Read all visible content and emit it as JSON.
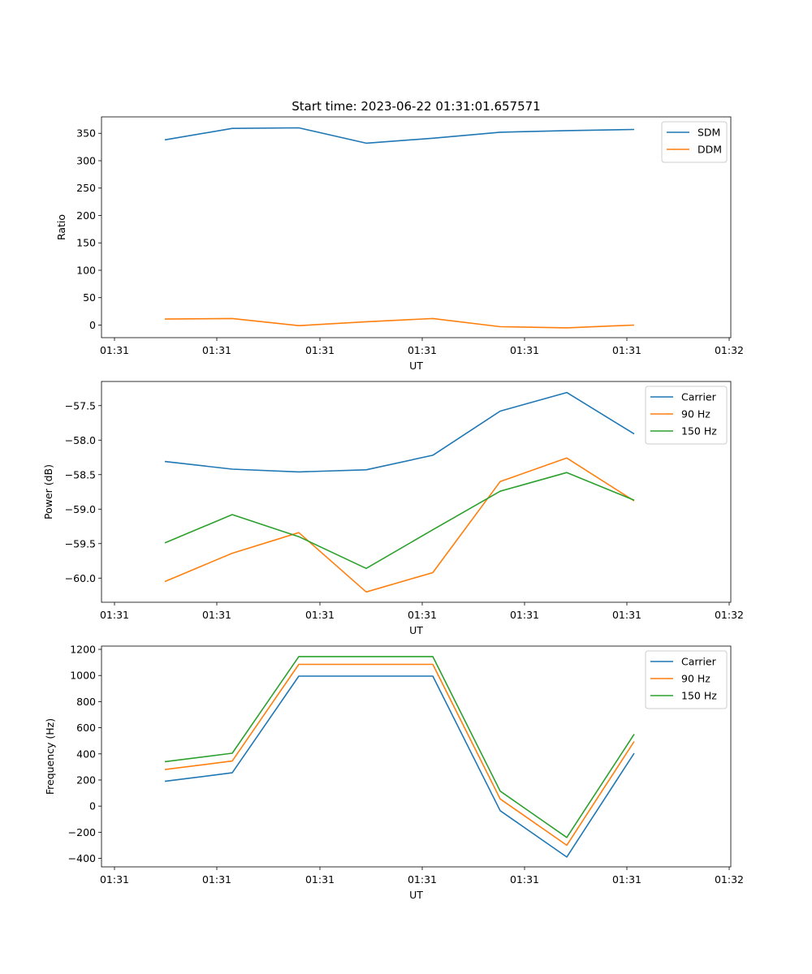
{
  "chart_data": [
    {
      "type": "line",
      "title": "Start time: 2023-06-22 01:31:01.657571",
      "xlabel": "UT",
      "ylabel": "Ratio",
      "ylim": [
        -23,
        380
      ],
      "x_ticks": [
        "01:31",
        "01:31",
        "01:31",
        "01:31",
        "01:31",
        "01:31",
        "01:31",
        "01:32"
      ],
      "y_ticks": [
        0,
        50,
        100,
        150,
        200,
        250,
        300,
        350
      ],
      "legend": "top-right",
      "series": [
        {
          "name": "SDM",
          "color": "#1f77b4",
          "values": [
            338,
            359,
            360,
            332,
            341,
            352,
            355,
            357
          ]
        },
        {
          "name": "DDM",
          "color": "#ff7f0e",
          "values": [
            11,
            12,
            -1,
            6,
            12,
            -3,
            -5,
            0
          ]
        }
      ]
    },
    {
      "type": "line",
      "title": "",
      "xlabel": "UT",
      "ylabel": "Power (dB)",
      "ylim": [
        -60.35,
        -57.15
      ],
      "x_ticks": [
        "01:31",
        "01:31",
        "01:31",
        "01:31",
        "01:31",
        "01:31",
        "01:31",
        "01:32"
      ],
      "y_ticks": [
        "−60.0",
        "−59.5",
        "−59.0",
        "−58.5",
        "−58.0",
        "−57.5"
      ],
      "legend": "top-right",
      "series": [
        {
          "name": "Carrier",
          "color": "#1f77b4",
          "values": [
            -58.31,
            -58.42,
            -58.46,
            -58.43,
            -58.22,
            -57.58,
            -57.31,
            -57.91
          ]
        },
        {
          "name": "90 Hz",
          "color": "#ff7f0e",
          "values": [
            -60.05,
            -59.64,
            -59.34,
            -60.2,
            -59.92,
            -58.6,
            -58.26,
            -58.88
          ]
        },
        {
          "name": "150 Hz",
          "color": "#2ca02c",
          "values": [
            -59.49,
            -59.08,
            -59.4,
            -59.86,
            -59.3,
            -58.74,
            -58.47,
            -58.87
          ]
        }
      ]
    },
    {
      "type": "line",
      "title": "",
      "xlabel": "UT",
      "ylabel": "Frequency (Hz)",
      "ylim": [
        -465,
        1225
      ],
      "x_ticks": [
        "01:31",
        "01:31",
        "01:31",
        "01:31",
        "01:31",
        "01:31",
        "01:31",
        "01:32"
      ],
      "y_ticks": [
        "−400",
        "−200",
        "0",
        "200",
        "400",
        "600",
        "800",
        "1000",
        "1200"
      ],
      "legend": "top-right",
      "series": [
        {
          "name": "Carrier",
          "color": "#1f77b4",
          "values": [
            190,
            255,
            995,
            995,
            995,
            -35,
            -390,
            405
          ]
        },
        {
          "name": "90 Hz",
          "color": "#ff7f0e",
          "values": [
            280,
            345,
            1085,
            1085,
            1085,
            55,
            -300,
            495
          ]
        },
        {
          "name": "150 Hz",
          "color": "#2ca02c",
          "values": [
            340,
            405,
            1145,
            1145,
            1145,
            115,
            -240,
            550
          ]
        }
      ]
    }
  ]
}
